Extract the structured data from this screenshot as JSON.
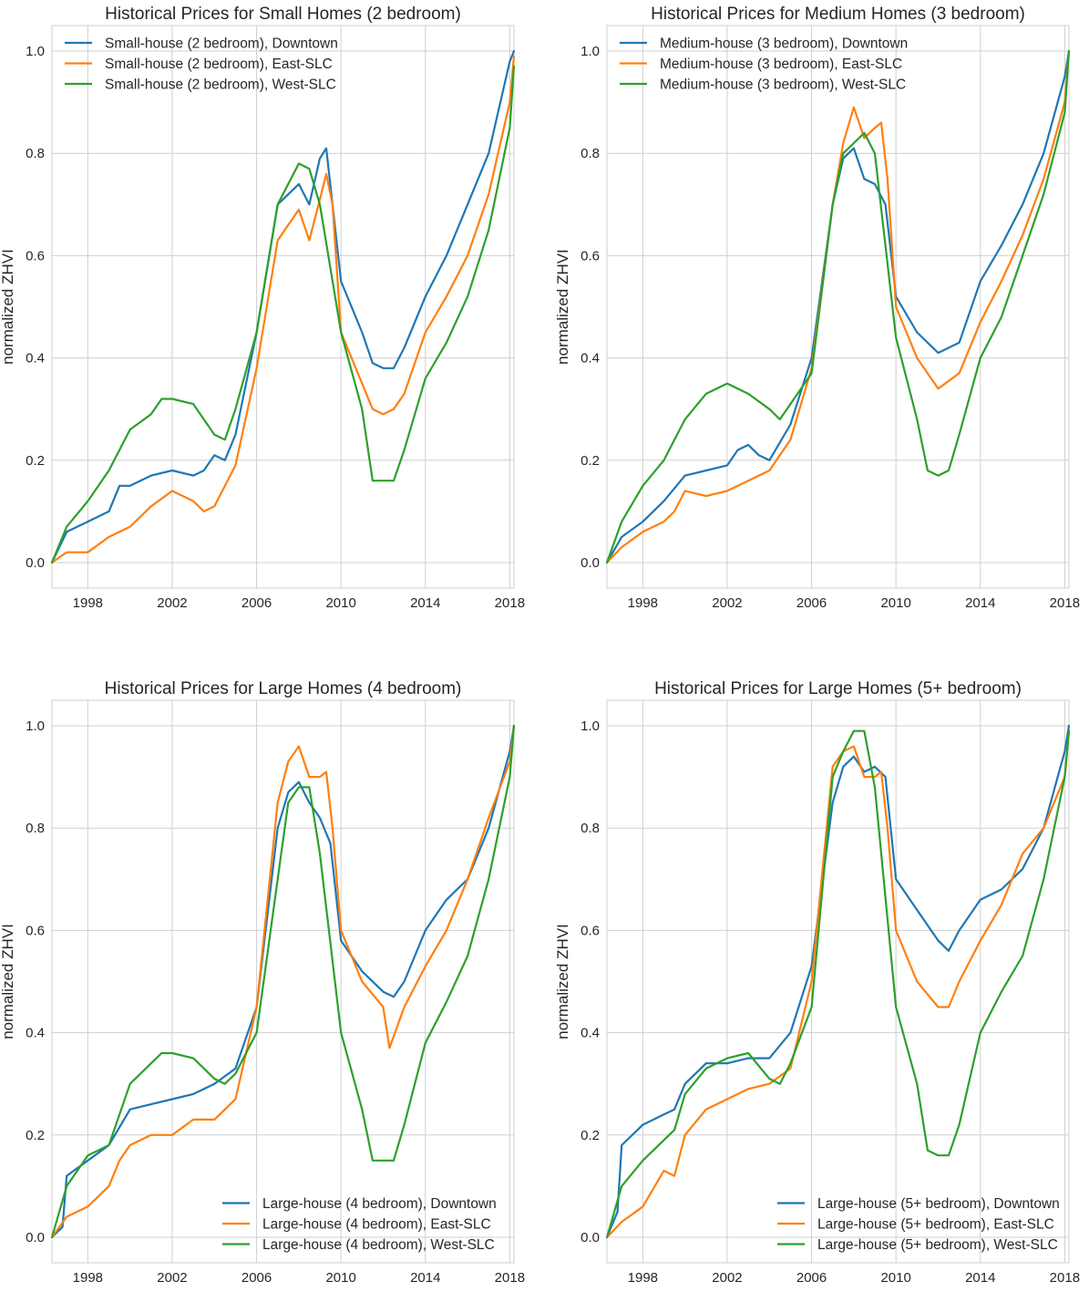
{
  "figure": {
    "colors": [
      "#1f77b4",
      "#ff7f0e",
      "#2ca02c"
    ],
    "x_ticks": [
      "1998",
      "2002",
      "2006",
      "2010",
      "2014",
      "2018"
    ],
    "y_ticks": [
      "0.0",
      "0.2",
      "0.4",
      "0.6",
      "0.8",
      "1.0"
    ]
  },
  "chart_data": [
    {
      "type": "line",
      "title": "Historical Prices for Small Homes (2 bedroom)",
      "xlabel": "",
      "ylabel": "normalized ZHVI",
      "xlim": [
        1996.3,
        2018.2
      ],
      "ylim": [
        -0.05,
        1.05
      ],
      "grid": true,
      "legend_position": "top-left",
      "series": [
        {
          "name": "Small-house (2 bedroom), Downtown",
          "x": [
            1996.3,
            1997,
            1998,
            1999,
            1999.5,
            2000,
            2001,
            2002,
            2003,
            2003.5,
            2004,
            2004.5,
            2005,
            2006,
            2007,
            2008,
            2008.5,
            2009,
            2009.3,
            2009.6,
            2010,
            2011,
            2011.5,
            2012,
            2012.5,
            2013,
            2014,
            2015,
            2016,
            2017,
            2018,
            2018.2
          ],
          "values": [
            0.0,
            0.06,
            0.08,
            0.1,
            0.15,
            0.15,
            0.17,
            0.18,
            0.17,
            0.18,
            0.21,
            0.2,
            0.25,
            0.45,
            0.7,
            0.74,
            0.7,
            0.79,
            0.81,
            0.7,
            0.55,
            0.45,
            0.39,
            0.38,
            0.38,
            0.42,
            0.52,
            0.6,
            0.7,
            0.8,
            0.98,
            1.0
          ]
        },
        {
          "name": "Small-house (2 bedroom), East-SLC",
          "x": [
            1996.3,
            1997,
            1998,
            1999,
            2000,
            2001,
            2002,
            2003,
            2003.5,
            2004,
            2005,
            2006,
            2007,
            2008,
            2008.5,
            2009,
            2009.3,
            2009.6,
            2010,
            2011,
            2011.5,
            2012,
            2012.5,
            2013,
            2014,
            2015,
            2016,
            2017,
            2018,
            2018.2
          ],
          "values": [
            0.0,
            0.02,
            0.02,
            0.05,
            0.07,
            0.11,
            0.14,
            0.12,
            0.1,
            0.11,
            0.19,
            0.38,
            0.63,
            0.69,
            0.63,
            0.71,
            0.76,
            0.7,
            0.45,
            0.35,
            0.3,
            0.29,
            0.3,
            0.33,
            0.45,
            0.52,
            0.6,
            0.72,
            0.9,
            0.99
          ]
        },
        {
          "name": "Small-house (2 bedroom), West-SLC",
          "x": [
            1996.3,
            1997,
            1998,
            1999,
            2000,
            2001,
            2001.5,
            2002,
            2003,
            2004,
            2004.5,
            2005,
            2006,
            2007,
            2008,
            2008.5,
            2009,
            2010,
            2011,
            2011.5,
            2012,
            2012.5,
            2013,
            2014,
            2015,
            2016,
            2017,
            2018,
            2018.2
          ],
          "values": [
            0.0,
            0.07,
            0.12,
            0.18,
            0.26,
            0.29,
            0.32,
            0.32,
            0.31,
            0.25,
            0.24,
            0.3,
            0.45,
            0.7,
            0.78,
            0.77,
            0.7,
            0.45,
            0.3,
            0.16,
            0.16,
            0.16,
            0.22,
            0.36,
            0.43,
            0.52,
            0.65,
            0.85,
            0.97
          ]
        }
      ]
    },
    {
      "type": "line",
      "title": "Historical Prices for Medium Homes (3 bedroom)",
      "xlabel": "",
      "ylabel": "normalized ZHVI",
      "xlim": [
        1996.3,
        2018.2
      ],
      "ylim": [
        -0.05,
        1.05
      ],
      "grid": true,
      "legend_position": "top-left",
      "series": [
        {
          "name": "Medium-house (3 bedroom), Downtown",
          "x": [
            1996.3,
            1997,
            1998,
            1999,
            2000,
            2001,
            2002,
            2002.5,
            2003,
            2003.5,
            2004,
            2005,
            2006,
            2007,
            2007.5,
            2008,
            2008.5,
            2009,
            2009.5,
            2010,
            2011,
            2012,
            2013,
            2014,
            2015,
            2016,
            2017,
            2018,
            2018.2
          ],
          "values": [
            0.0,
            0.05,
            0.08,
            0.12,
            0.17,
            0.18,
            0.19,
            0.22,
            0.23,
            0.21,
            0.2,
            0.27,
            0.4,
            0.7,
            0.79,
            0.81,
            0.75,
            0.74,
            0.7,
            0.52,
            0.45,
            0.41,
            0.43,
            0.55,
            0.62,
            0.7,
            0.8,
            0.95,
            1.0
          ]
        },
        {
          "name": "Medium-house (3 bedroom), East-SLC",
          "x": [
            1996.3,
            1997,
            1998,
            1999,
            1999.5,
            2000,
            2001,
            2002,
            2003,
            2004,
            2005,
            2006,
            2007,
            2007.5,
            2008,
            2008.5,
            2009,
            2009.3,
            2009.6,
            2010,
            2011,
            2012,
            2013,
            2014,
            2015,
            2016,
            2017,
            2018,
            2018.2
          ],
          "values": [
            0.0,
            0.03,
            0.06,
            0.08,
            0.1,
            0.14,
            0.13,
            0.14,
            0.16,
            0.18,
            0.24,
            0.38,
            0.7,
            0.82,
            0.89,
            0.83,
            0.85,
            0.86,
            0.75,
            0.5,
            0.4,
            0.34,
            0.37,
            0.47,
            0.55,
            0.64,
            0.75,
            0.9,
            1.0
          ]
        },
        {
          "name": "Medium-house (3 bedroom), West-SLC",
          "x": [
            1996.3,
            1997,
            1998,
            1999,
            2000,
            2001,
            2002,
            2003,
            2004,
            2004.5,
            2005,
            2006,
            2007,
            2007.5,
            2008,
            2008.5,
            2009,
            2010,
            2011,
            2011.5,
            2012,
            2012.5,
            2013,
            2014,
            2015,
            2016,
            2017,
            2018,
            2018.2
          ],
          "values": [
            0.0,
            0.08,
            0.15,
            0.2,
            0.28,
            0.33,
            0.35,
            0.33,
            0.3,
            0.28,
            0.31,
            0.37,
            0.7,
            0.8,
            0.82,
            0.84,
            0.8,
            0.44,
            0.28,
            0.18,
            0.17,
            0.18,
            0.25,
            0.4,
            0.48,
            0.6,
            0.72,
            0.88,
            1.0
          ]
        }
      ]
    },
    {
      "type": "line",
      "title": "Historical Prices for Large Homes (4 bedroom)",
      "xlabel": "",
      "ylabel": "normalized ZHVI",
      "xlim": [
        1996.3,
        2018.2
      ],
      "ylim": [
        -0.05,
        1.05
      ],
      "grid": true,
      "legend_position": "bottom-right",
      "series": [
        {
          "name": "Large-house (4 bedroom), Downtown",
          "x": [
            1996.3,
            1996.8,
            1997,
            1998,
            1999,
            2000,
            2001,
            2002,
            2003,
            2004,
            2005,
            2006,
            2007,
            2007.5,
            2008,
            2008.5,
            2009,
            2009.5,
            2010,
            2011,
            2012,
            2012.5,
            2013,
            2014,
            2015,
            2016,
            2017,
            2018,
            2018.2
          ],
          "values": [
            0.0,
            0.02,
            0.12,
            0.15,
            0.18,
            0.25,
            0.26,
            0.27,
            0.28,
            0.3,
            0.33,
            0.45,
            0.8,
            0.87,
            0.89,
            0.85,
            0.82,
            0.77,
            0.58,
            0.52,
            0.48,
            0.47,
            0.5,
            0.6,
            0.66,
            0.7,
            0.8,
            0.95,
            1.0
          ]
        },
        {
          "name": "Large-house (4 bedroom), East-SLC",
          "x": [
            1996.3,
            1997,
            1998,
            1999,
            1999.5,
            2000,
            2001,
            2002,
            2003,
            2004,
            2005,
            2006,
            2007,
            2007.5,
            2008,
            2008.5,
            2009,
            2009.3,
            2009.6,
            2010,
            2011,
            2012,
            2012.3,
            2013,
            2014,
            2015,
            2016,
            2017,
            2018,
            2018.2
          ],
          "values": [
            0.0,
            0.04,
            0.06,
            0.1,
            0.15,
            0.18,
            0.2,
            0.2,
            0.23,
            0.23,
            0.27,
            0.45,
            0.85,
            0.93,
            0.96,
            0.9,
            0.9,
            0.91,
            0.8,
            0.6,
            0.5,
            0.45,
            0.37,
            0.45,
            0.53,
            0.6,
            0.7,
            0.82,
            0.93,
            1.0
          ]
        },
        {
          "name": "Large-house (4 bedroom), West-SLC",
          "x": [
            1996.3,
            1997,
            1998,
            1999,
            2000,
            2001,
            2001.5,
            2002,
            2003,
            2004,
            2004.5,
            2005,
            2006,
            2007,
            2007.5,
            2008,
            2008.5,
            2009,
            2010,
            2011,
            2011.5,
            2012,
            2012.5,
            2013,
            2014,
            2015,
            2016,
            2017,
            2018,
            2018.2
          ],
          "values": [
            0.0,
            0.1,
            0.16,
            0.18,
            0.3,
            0.34,
            0.36,
            0.36,
            0.35,
            0.31,
            0.3,
            0.32,
            0.4,
            0.7,
            0.85,
            0.88,
            0.88,
            0.75,
            0.4,
            0.25,
            0.15,
            0.15,
            0.15,
            0.22,
            0.38,
            0.46,
            0.55,
            0.7,
            0.9,
            1.0
          ]
        }
      ]
    },
    {
      "type": "line",
      "title": "Historical Prices for Large Homes (5+ bedroom)",
      "xlabel": "",
      "ylabel": "normalized ZHVI",
      "xlim": [
        1996.3,
        2018.2
      ],
      "ylim": [
        -0.05,
        1.05
      ],
      "grid": true,
      "legend_position": "bottom-right",
      "series": [
        {
          "name": "Large-house (5+ bedroom), Downtown",
          "x": [
            1996.3,
            1996.8,
            1997,
            1998,
            1999,
            1999.5,
            2000,
            2001,
            2002,
            2003,
            2004,
            2005,
            2006,
            2007,
            2007.5,
            2008,
            2008.5,
            2009,
            2009.5,
            2010,
            2011,
            2012,
            2012.5,
            2013,
            2014,
            2015,
            2016,
            2017,
            2018,
            2018.2
          ],
          "values": [
            0.0,
            0.05,
            0.18,
            0.22,
            0.24,
            0.25,
            0.3,
            0.34,
            0.34,
            0.35,
            0.35,
            0.4,
            0.53,
            0.85,
            0.92,
            0.94,
            0.91,
            0.92,
            0.9,
            0.7,
            0.64,
            0.58,
            0.56,
            0.6,
            0.66,
            0.68,
            0.72,
            0.8,
            0.95,
            1.0
          ]
        },
        {
          "name": "Large-house (5+ bedroom), East-SLC",
          "x": [
            1996.3,
            1997,
            1998,
            1999,
            1999.5,
            2000,
            2001,
            2002,
            2003,
            2004,
            2005,
            2006,
            2007,
            2007.5,
            2008,
            2008.5,
            2009,
            2009.3,
            2009.6,
            2010,
            2011,
            2012,
            2012.5,
            2013,
            2014,
            2015,
            2016,
            2017,
            2018,
            2018.2
          ],
          "values": [
            0.0,
            0.03,
            0.06,
            0.13,
            0.12,
            0.2,
            0.25,
            0.27,
            0.29,
            0.3,
            0.33,
            0.5,
            0.92,
            0.95,
            0.96,
            0.9,
            0.9,
            0.91,
            0.8,
            0.6,
            0.5,
            0.45,
            0.45,
            0.5,
            0.58,
            0.65,
            0.75,
            0.8,
            0.9,
            0.99
          ]
        },
        {
          "name": "Large-house (5+ bedroom), West-SLC",
          "x": [
            1996.3,
            1997,
            1998,
            1999,
            1999.5,
            2000,
            2001,
            2002,
            2003,
            2004,
            2004.5,
            2005,
            2006,
            2007,
            2007.5,
            2008,
            2008.5,
            2009,
            2010,
            2011,
            2011.5,
            2012,
            2012.5,
            2013,
            2014,
            2015,
            2016,
            2017,
            2018,
            2018.2
          ],
          "values": [
            0.0,
            0.1,
            0.15,
            0.19,
            0.21,
            0.28,
            0.33,
            0.35,
            0.36,
            0.31,
            0.3,
            0.34,
            0.45,
            0.9,
            0.95,
            0.99,
            0.99,
            0.88,
            0.45,
            0.3,
            0.17,
            0.16,
            0.16,
            0.22,
            0.4,
            0.48,
            0.55,
            0.7,
            0.9,
            0.99
          ]
        }
      ]
    }
  ]
}
